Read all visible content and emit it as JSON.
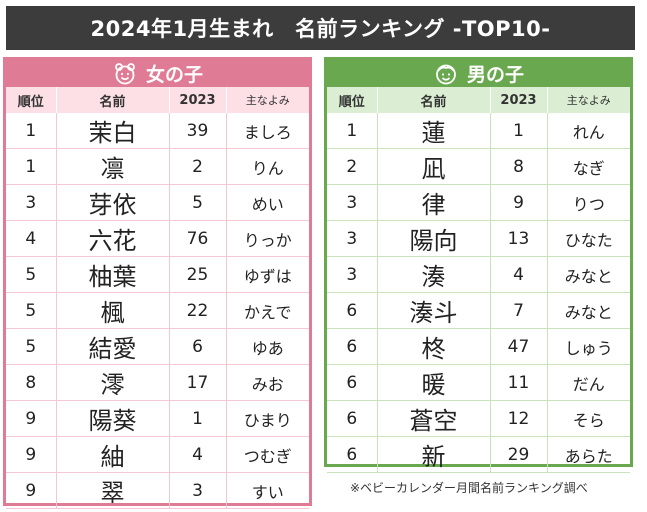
{
  "title": "2024年1月生まれ　名前ランキング -TOP10-",
  "colors": {
    "girls_accent": "#e07b95",
    "boys_accent": "#6aa84f",
    "title_bg": "#3c3c3c"
  },
  "girls": {
    "label": "女の子",
    "icon": "girl-face-icon",
    "headers": {
      "rank": "順位",
      "name": "名前",
      "count": "2023",
      "reading": "主なよみ"
    },
    "rows": [
      {
        "rank": "1",
        "name": "茉白",
        "count": "39",
        "reading": "ましろ"
      },
      {
        "rank": "1",
        "name": "凛",
        "count": "2",
        "reading": "りん"
      },
      {
        "rank": "3",
        "name": "芽依",
        "count": "5",
        "reading": "めい"
      },
      {
        "rank": "4",
        "name": "六花",
        "count": "76",
        "reading": "りっか"
      },
      {
        "rank": "5",
        "name": "柚葉",
        "count": "25",
        "reading": "ゆずは"
      },
      {
        "rank": "5",
        "name": "楓",
        "count": "22",
        "reading": "かえで"
      },
      {
        "rank": "5",
        "name": "結愛",
        "count": "6",
        "reading": "ゆあ"
      },
      {
        "rank": "8",
        "name": "澪",
        "count": "17",
        "reading": "みお"
      },
      {
        "rank": "9",
        "name": "陽葵",
        "count": "1",
        "reading": "ひまり"
      },
      {
        "rank": "9",
        "name": "紬",
        "count": "4",
        "reading": "つむぎ"
      },
      {
        "rank": "9",
        "name": "翠",
        "count": "3",
        "reading": "すい"
      }
    ]
  },
  "boys": {
    "label": "男の子",
    "icon": "boy-face-icon",
    "headers": {
      "rank": "順位",
      "name": "名前",
      "count": "2023",
      "reading": "主なよみ"
    },
    "rows": [
      {
        "rank": "1",
        "name": "蓮",
        "count": "1",
        "reading": "れん"
      },
      {
        "rank": "2",
        "name": "凪",
        "count": "8",
        "reading": "なぎ"
      },
      {
        "rank": "3",
        "name": "律",
        "count": "9",
        "reading": "りつ"
      },
      {
        "rank": "3",
        "name": "陽向",
        "count": "13",
        "reading": "ひなた"
      },
      {
        "rank": "3",
        "name": "湊",
        "count": "4",
        "reading": "みなと"
      },
      {
        "rank": "6",
        "name": "湊斗",
        "count": "7",
        "reading": "みなと"
      },
      {
        "rank": "6",
        "name": "柊",
        "count": "47",
        "reading": "しゅう"
      },
      {
        "rank": "6",
        "name": "暖",
        "count": "11",
        "reading": "だん"
      },
      {
        "rank": "6",
        "name": "蒼空",
        "count": "12",
        "reading": "そら"
      },
      {
        "rank": "6",
        "name": "新",
        "count": "29",
        "reading": "あらた"
      }
    ]
  },
  "note": "※ベビーカレンダー月間名前ランキング調べ"
}
